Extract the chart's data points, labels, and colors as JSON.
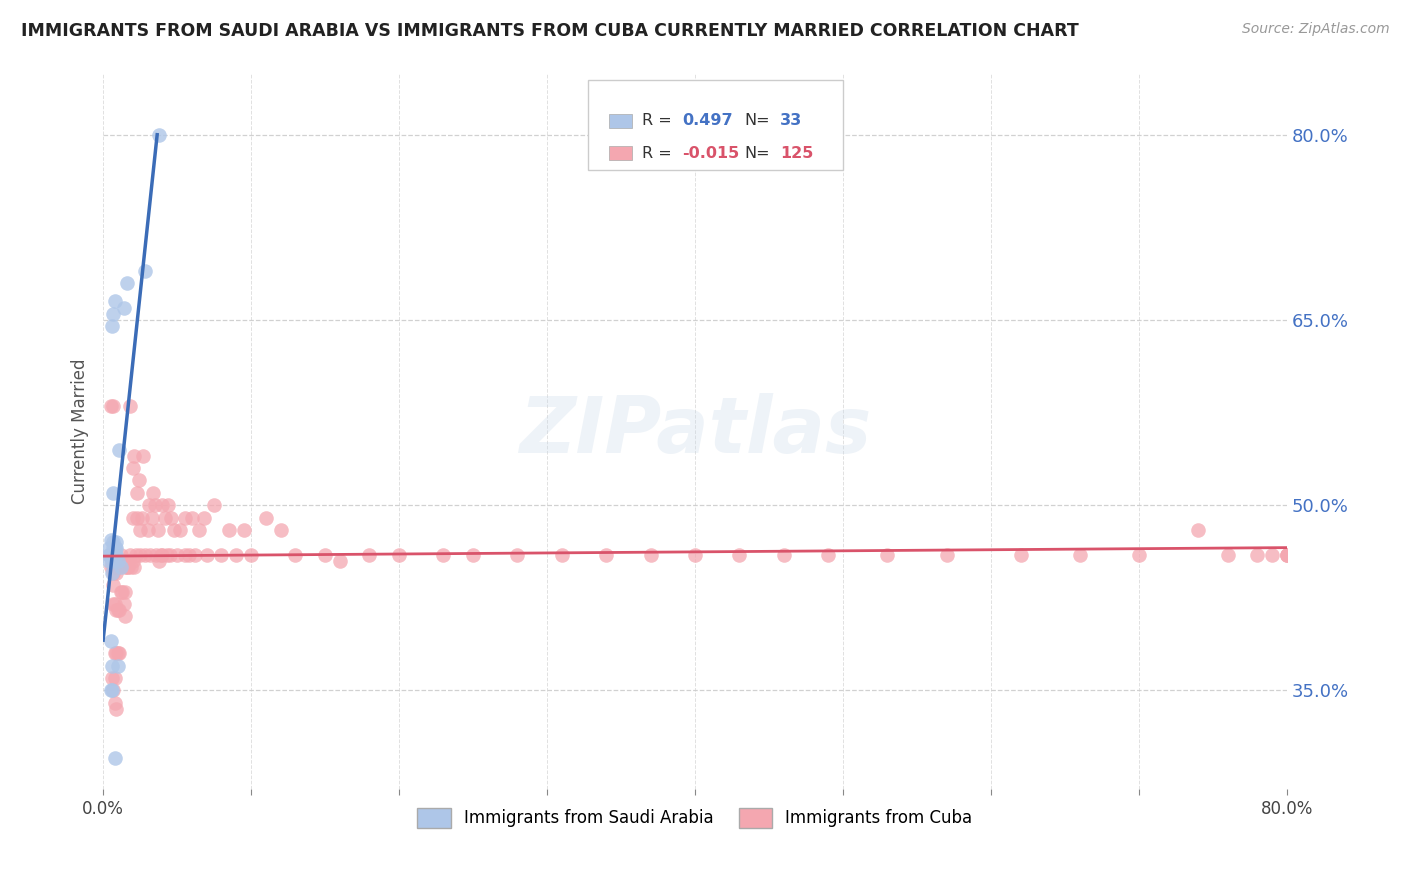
{
  "title": "IMMIGRANTS FROM SAUDI ARABIA VS IMMIGRANTS FROM CUBA CURRENTLY MARRIED CORRELATION CHART",
  "source": "Source: ZipAtlas.com",
  "ylabel": "Currently Married",
  "xlim": [
    0.0,
    0.8
  ],
  "ylim": [
    0.27,
    0.85
  ],
  "ytick_positions": [
    0.35,
    0.5,
    0.65,
    0.8
  ],
  "ytick_labels": [
    "35.0%",
    "50.0%",
    "65.0%",
    "80.0%"
  ],
  "xtick_positions": [
    0.0,
    0.1,
    0.2,
    0.3,
    0.4,
    0.5,
    0.6,
    0.7,
    0.8
  ],
  "xtick_labels": [
    "0.0%",
    "",
    "",
    "",
    "",
    "",
    "",
    "",
    "80.0%"
  ],
  "grid_color": "#cccccc",
  "background_color": "#ffffff",
  "saudi_color": "#aec6e8",
  "saudi_line_color": "#3b6cb7",
  "cuba_color": "#f4a7b0",
  "cuba_line_color": "#d9536a",
  "saudi_R": 0.497,
  "saudi_N": 33,
  "cuba_R": -0.015,
  "cuba_N": 125,
  "watermark": "ZIPatlas",
  "saudi_x": [
    0.004,
    0.004,
    0.004,
    0.005,
    0.005,
    0.005,
    0.005,
    0.006,
    0.006,
    0.006,
    0.006,
    0.006,
    0.006,
    0.007,
    0.007,
    0.007,
    0.007,
    0.007,
    0.008,
    0.008,
    0.008,
    0.008,
    0.009,
    0.009,
    0.009,
    0.01,
    0.01,
    0.011,
    0.012,
    0.014,
    0.016,
    0.028,
    0.038
  ],
  "saudi_y": [
    0.455,
    0.46,
    0.465,
    0.35,
    0.39,
    0.46,
    0.472,
    0.35,
    0.37,
    0.445,
    0.455,
    0.46,
    0.645,
    0.46,
    0.465,
    0.47,
    0.51,
    0.655,
    0.295,
    0.46,
    0.465,
    0.665,
    0.46,
    0.465,
    0.47,
    0.37,
    0.455,
    0.545,
    0.45,
    0.66,
    0.68,
    0.69,
    0.8
  ],
  "cuba_x": [
    0.004,
    0.005,
    0.005,
    0.006,
    0.006,
    0.006,
    0.007,
    0.007,
    0.007,
    0.007,
    0.007,
    0.007,
    0.008,
    0.008,
    0.008,
    0.008,
    0.008,
    0.009,
    0.009,
    0.009,
    0.009,
    0.009,
    0.01,
    0.01,
    0.01,
    0.01,
    0.011,
    0.011,
    0.011,
    0.012,
    0.012,
    0.013,
    0.013,
    0.014,
    0.014,
    0.015,
    0.015,
    0.015,
    0.016,
    0.017,
    0.017,
    0.018,
    0.018,
    0.019,
    0.02,
    0.02,
    0.02,
    0.021,
    0.021,
    0.022,
    0.023,
    0.023,
    0.024,
    0.025,
    0.025,
    0.026,
    0.027,
    0.028,
    0.03,
    0.031,
    0.032,
    0.033,
    0.034,
    0.035,
    0.036,
    0.037,
    0.038,
    0.039,
    0.04,
    0.04,
    0.042,
    0.043,
    0.044,
    0.045,
    0.046,
    0.048,
    0.05,
    0.052,
    0.055,
    0.055,
    0.058,
    0.06,
    0.062,
    0.065,
    0.068,
    0.07,
    0.075,
    0.08,
    0.085,
    0.09,
    0.095,
    0.1,
    0.11,
    0.12,
    0.13,
    0.15,
    0.16,
    0.18,
    0.2,
    0.23,
    0.25,
    0.28,
    0.31,
    0.34,
    0.37,
    0.4,
    0.43,
    0.46,
    0.49,
    0.53,
    0.57,
    0.62,
    0.66,
    0.7,
    0.74,
    0.76,
    0.78,
    0.79,
    0.8,
    0.8,
    0.8
  ],
  "cuba_y": [
    0.46,
    0.45,
    0.58,
    0.36,
    0.455,
    0.46,
    0.35,
    0.42,
    0.435,
    0.445,
    0.45,
    0.58,
    0.34,
    0.36,
    0.38,
    0.42,
    0.45,
    0.335,
    0.38,
    0.415,
    0.445,
    0.455,
    0.38,
    0.415,
    0.45,
    0.455,
    0.38,
    0.415,
    0.455,
    0.43,
    0.46,
    0.43,
    0.455,
    0.42,
    0.455,
    0.41,
    0.43,
    0.45,
    0.45,
    0.45,
    0.455,
    0.46,
    0.58,
    0.45,
    0.455,
    0.49,
    0.53,
    0.45,
    0.54,
    0.46,
    0.49,
    0.51,
    0.52,
    0.46,
    0.48,
    0.49,
    0.54,
    0.46,
    0.48,
    0.5,
    0.46,
    0.49,
    0.51,
    0.5,
    0.46,
    0.48,
    0.455,
    0.46,
    0.46,
    0.5,
    0.49,
    0.46,
    0.5,
    0.46,
    0.49,
    0.48,
    0.46,
    0.48,
    0.46,
    0.49,
    0.46,
    0.49,
    0.46,
    0.48,
    0.49,
    0.46,
    0.5,
    0.46,
    0.48,
    0.46,
    0.48,
    0.46,
    0.49,
    0.48,
    0.46,
    0.46,
    0.455,
    0.46,
    0.46,
    0.46,
    0.46,
    0.46,
    0.46,
    0.46,
    0.46,
    0.46,
    0.46,
    0.46,
    0.46,
    0.46,
    0.46,
    0.46,
    0.46,
    0.46,
    0.48,
    0.46,
    0.46,
    0.46,
    0.46,
    0.46,
    0.46
  ]
}
